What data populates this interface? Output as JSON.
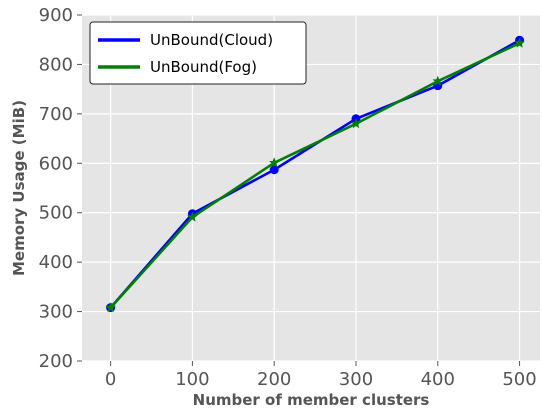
{
  "chart_data": {
    "type": "line",
    "xlabel": "Number of member clusters",
    "ylabel": "Memory Usage (MiB)",
    "x": [
      0,
      100,
      200,
      300,
      400,
      500
    ],
    "xticks": [
      "0",
      "100",
      "200",
      "300",
      "400",
      "500"
    ],
    "yticks": [
      "200",
      "300",
      "400",
      "500",
      "600",
      "700",
      "800",
      "900"
    ],
    "xlim": [
      -35,
      525
    ],
    "ylim": [
      200,
      900
    ],
    "grid": true,
    "legend_position": "top-left",
    "series": [
      {
        "name": "UnBound(Cloud)",
        "color": "#0000ff",
        "marker": "circle",
        "values": [
          308,
          498,
          587,
          690,
          757,
          849
        ]
      },
      {
        "name": "UnBound(Fog)",
        "color": "#008000",
        "marker": "star",
        "values": [
          308,
          491,
          601,
          680,
          766,
          843
        ]
      }
    ]
  }
}
